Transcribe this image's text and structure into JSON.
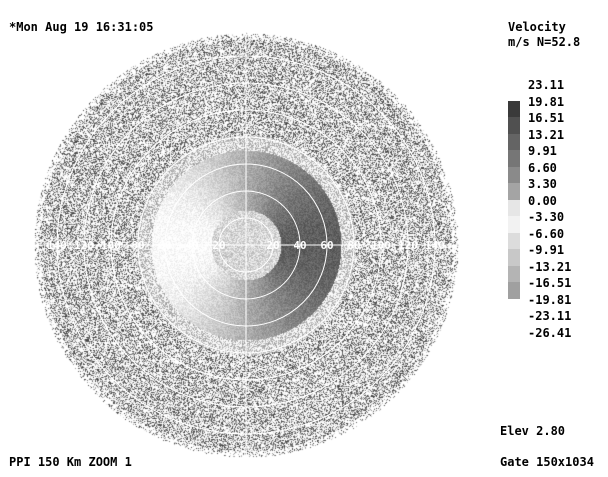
{
  "header": {
    "timestamp": "*Mon Aug 19 16:31:05",
    "product": "Velocity",
    "units_nyquist": "m/s N=52.8"
  },
  "legend": {
    "levels": [
      {
        "label": "23.11",
        "color": "#ffffff"
      },
      {
        "label": "19.81",
        "color": "#3a3a3a"
      },
      {
        "label": "16.51",
        "color": "#505050"
      },
      {
        "label": "13.21",
        "color": "#646464"
      },
      {
        "label": "9.91",
        "color": "#767676"
      },
      {
        "label": "6.60",
        "color": "#8a8a8a"
      },
      {
        "label": "3.30",
        "color": "#a4a4a4"
      },
      {
        "label": "0.00",
        "color": "#e6e6e6"
      },
      {
        "label": "-3.30",
        "color": "#f2f2f2"
      },
      {
        "label": "-6.60",
        "color": "#dcdcdc"
      },
      {
        "label": "-9.91",
        "color": "#c8c8c8"
      },
      {
        "label": "-13.21",
        "color": "#b4b4b4"
      },
      {
        "label": "-16.51",
        "color": "#a0a0a0"
      },
      {
        "label": "-19.81",
        "color": "#ffffff"
      },
      {
        "label": "-23.11",
        "color": "#ffffff"
      },
      {
        "label": "-26.41",
        "color": "#ffffff"
      }
    ]
  },
  "footer": {
    "mode": "PPI 150 Km ZOOM 1",
    "elevation": "Elev 2.80",
    "gate": "Gate 150x1034"
  },
  "range_rings_km": [
    20,
    40,
    60,
    80,
    100,
    120,
    140
  ],
  "range_labels": [
    "140",
    "120",
    "100",
    "80",
    "60",
    "40",
    "20",
    "20",
    "40",
    "60",
    "80",
    "100",
    "120",
    "140"
  ]
}
